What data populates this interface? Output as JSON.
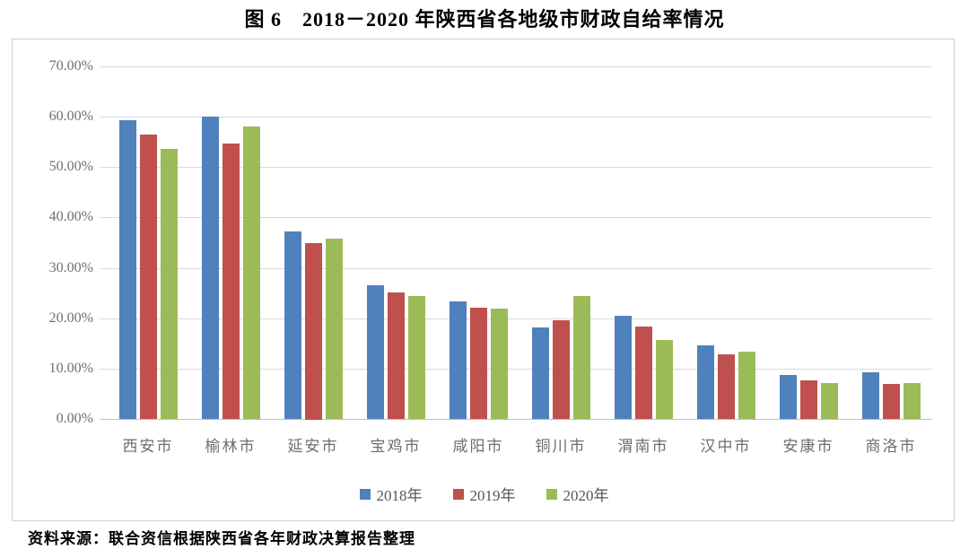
{
  "title": "图 6　2018－2020 年陕西省各地级市财政自给率情况",
  "source": "资料来源：联合资信根据陕西省各年财政决算报告整理",
  "colors": {
    "series_2018": "#4F81BD",
    "series_2019": "#C0504D",
    "series_2020": "#9BBB59",
    "gridline": "#d9d9d9",
    "axis_text": "#6e6e6e"
  },
  "chart_data": {
    "type": "bar",
    "title": "图 6　2018－2020 年陕西省各地级市财政自给率情况",
    "categories": [
      "西安市",
      "榆林市",
      "延安市",
      "宝鸡市",
      "咸阳市",
      "铜川市",
      "渭南市",
      "汉中市",
      "安康市",
      "商洛市"
    ],
    "series": [
      {
        "name": "2018年",
        "color": "#4F81BD",
        "values": [
          59.4,
          60.1,
          37.3,
          26.5,
          23.3,
          18.1,
          20.5,
          14.6,
          8.7,
          9.2
        ]
      },
      {
        "name": "2019年",
        "color": "#C0504D",
        "values": [
          56.4,
          54.6,
          35.0,
          25.2,
          22.1,
          19.6,
          18.3,
          12.9,
          7.6,
          7.0
        ]
      },
      {
        "name": "2020年",
        "color": "#9BBB59",
        "values": [
          53.7,
          58.0,
          35.8,
          24.4,
          21.9,
          24.4,
          15.6,
          13.3,
          7.2,
          7.2
        ]
      }
    ],
    "xlabel": "",
    "ylabel": "",
    "ylim": [
      0,
      70
    ],
    "yticks": [
      {
        "value": 70,
        "label": "70.00%"
      },
      {
        "value": 60,
        "label": "60.00%"
      },
      {
        "value": 50,
        "label": "50.00%"
      },
      {
        "value": 40,
        "label": "40.00%"
      },
      {
        "value": 30,
        "label": "30.00%"
      },
      {
        "value": 20,
        "label": "20.00%"
      },
      {
        "value": 10,
        "label": "10.00%"
      },
      {
        "value": 0,
        "label": "0.00%"
      }
    ],
    "grid": true,
    "legend_position": "bottom"
  }
}
